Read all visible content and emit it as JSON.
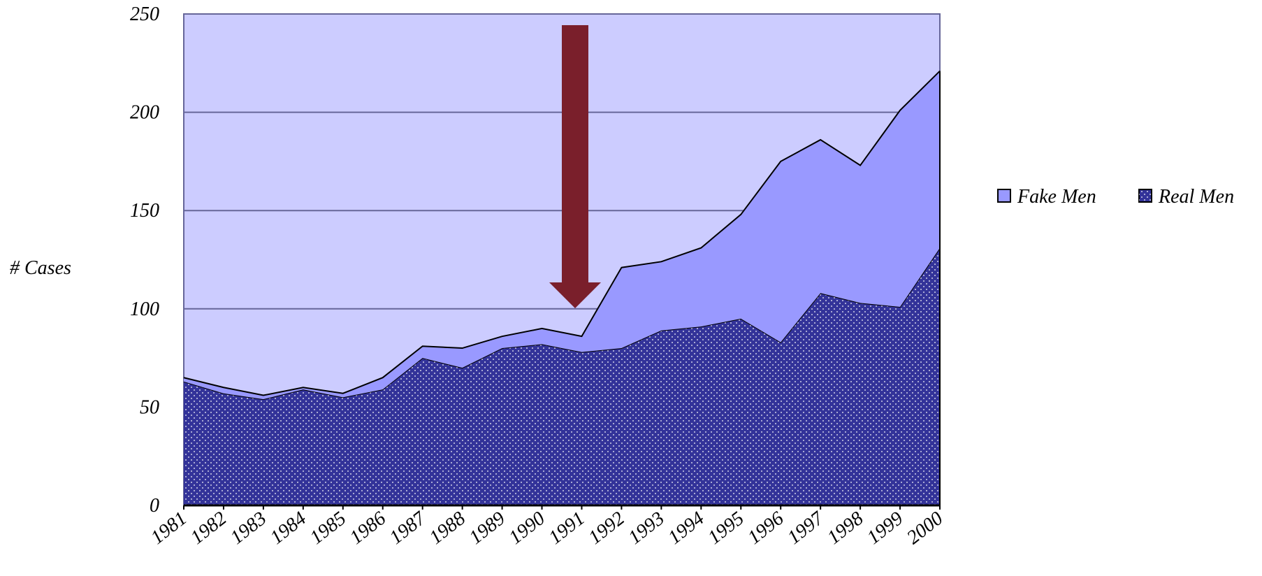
{
  "chart_data": {
    "type": "stacked-area",
    "y_label": "# Cases",
    "categories": [
      "1981",
      "1982",
      "1983",
      "1984",
      "1985",
      "1986",
      "1987",
      "1988",
      "1989",
      "1990",
      "1991",
      "1992",
      "1993",
      "1994",
      "1995",
      "1996",
      "1997",
      "1998",
      "1999",
      "2000"
    ],
    "series": [
      {
        "name": "Fake Men",
        "color": "#9999ff",
        "values": [
          2,
          3,
          2,
          1,
          2,
          6,
          6,
          10,
          6,
          8,
          8,
          41,
          35,
          40,
          53,
          92,
          78,
          70,
          100,
          90
        ]
      },
      {
        "name": "Real Men",
        "color": "#333399",
        "values": [
          63,
          57,
          54,
          59,
          55,
          59,
          75,
          70,
          80,
          82,
          78,
          80,
          89,
          91,
          95,
          83,
          108,
          103,
          101,
          131
        ]
      }
    ],
    "ylim": [
      0,
      250
    ],
    "yticks": [
      0,
      50,
      100,
      150,
      200,
      250
    ],
    "grid": true,
    "background": "#ccccff",
    "legend": "right"
  }
}
